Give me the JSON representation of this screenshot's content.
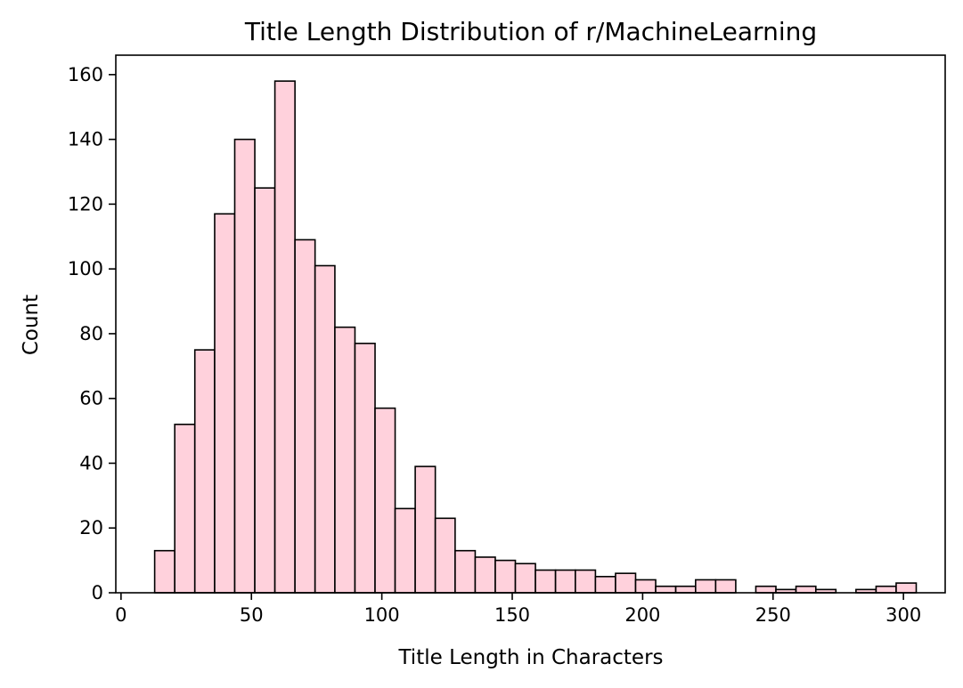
{
  "chart_data": {
    "type": "bar",
    "title": "Title Length Distribution of r/MachineLearning",
    "xlabel": "Title Length in Characters",
    "ylabel": "Count",
    "xlim": [
      -2,
      316
    ],
    "ylim": [
      0,
      166
    ],
    "xticks": [
      0,
      50,
      100,
      150,
      200,
      250,
      300
    ],
    "yticks": [
      0,
      20,
      40,
      60,
      80,
      100,
      120,
      140,
      160
    ],
    "grid": false,
    "bar_color": "#ffd1dc",
    "edge_color": "#000000",
    "bins": [
      {
        "x0": 12.9,
        "x1": 20.6,
        "count": 13
      },
      {
        "x0": 20.6,
        "x1": 28.3,
        "count": 52
      },
      {
        "x0": 28.3,
        "x1": 35.9,
        "count": 75
      },
      {
        "x0": 35.9,
        "x1": 43.6,
        "count": 117
      },
      {
        "x0": 43.6,
        "x1": 51.3,
        "count": 140
      },
      {
        "x0": 51.3,
        "x1": 59.0,
        "count": 125
      },
      {
        "x0": 59.0,
        "x1": 66.7,
        "count": 158
      },
      {
        "x0": 66.7,
        "x1": 74.4,
        "count": 109
      },
      {
        "x0": 74.4,
        "x1": 82.0,
        "count": 101
      },
      {
        "x0": 82.0,
        "x1": 89.7,
        "count": 82
      },
      {
        "x0": 89.7,
        "x1": 97.4,
        "count": 77
      },
      {
        "x0": 97.4,
        "x1": 105.1,
        "count": 57
      },
      {
        "x0": 105.1,
        "x1": 112.8,
        "count": 26
      },
      {
        "x0": 112.8,
        "x1": 120.5,
        "count": 39
      },
      {
        "x0": 120.5,
        "x1": 128.1,
        "count": 23
      },
      {
        "x0": 128.1,
        "x1": 135.8,
        "count": 13
      },
      {
        "x0": 135.8,
        "x1": 143.5,
        "count": 11
      },
      {
        "x0": 143.5,
        "x1": 151.2,
        "count": 10
      },
      {
        "x0": 151.2,
        "x1": 158.9,
        "count": 9
      },
      {
        "x0": 158.9,
        "x1": 166.6,
        "count": 7
      },
      {
        "x0": 166.6,
        "x1": 174.2,
        "count": 7
      },
      {
        "x0": 174.2,
        "x1": 181.9,
        "count": 7
      },
      {
        "x0": 181.9,
        "x1": 189.6,
        "count": 5
      },
      {
        "x0": 189.6,
        "x1": 197.3,
        "count": 6
      },
      {
        "x0": 197.3,
        "x1": 205.0,
        "count": 4
      },
      {
        "x0": 205.0,
        "x1": 212.7,
        "count": 2
      },
      {
        "x0": 212.7,
        "x1": 220.3,
        "count": 2
      },
      {
        "x0": 220.3,
        "x1": 228.0,
        "count": 4
      },
      {
        "x0": 228.0,
        "x1": 235.7,
        "count": 4
      },
      {
        "x0": 235.7,
        "x1": 243.4,
        "count": 0
      },
      {
        "x0": 243.4,
        "x1": 251.1,
        "count": 2
      },
      {
        "x0": 251.1,
        "x1": 258.8,
        "count": 1
      },
      {
        "x0": 258.8,
        "x1": 266.4,
        "count": 2
      },
      {
        "x0": 266.4,
        "x1": 274.1,
        "count": 1
      },
      {
        "x0": 274.1,
        "x1": 281.8,
        "count": 0
      },
      {
        "x0": 281.8,
        "x1": 289.5,
        "count": 1
      },
      {
        "x0": 289.5,
        "x1": 297.2,
        "count": 2
      },
      {
        "x0": 297.2,
        "x1": 304.9,
        "count": 3
      }
    ]
  }
}
